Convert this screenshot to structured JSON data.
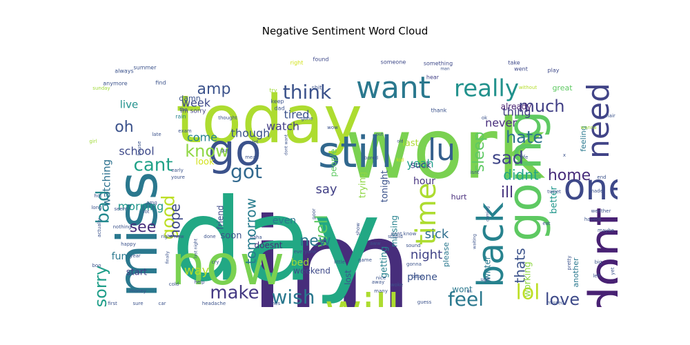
{
  "chart_data": {
    "type": "wordcloud",
    "title": "Negative Sentiment Word Cloud",
    "colormap": "viridis",
    "background": "#ffffff",
    "words": [
      {
        "text": "im",
        "weight": 1.0,
        "color": "#472d7b"
      },
      {
        "text": "work",
        "weight": 0.98,
        "color": "#7ad151"
      },
      {
        "text": "day",
        "weight": 0.97,
        "color": "#22a884"
      },
      {
        "text": "today",
        "weight": 0.85,
        "color": "#addc30"
      },
      {
        "text": "miss",
        "weight": 0.7,
        "color": "#2a788e"
      },
      {
        "text": "now",
        "weight": 0.68,
        "color": "#7ad151"
      },
      {
        "text": "dont",
        "weight": 0.6,
        "color": "#482173"
      },
      {
        "text": "still",
        "weight": 0.58,
        "color": "#31688e"
      },
      {
        "text": "going",
        "weight": 0.57,
        "color": "#5ec962"
      },
      {
        "text": "go",
        "weight": 0.55,
        "color": "#3b528b"
      },
      {
        "text": "will",
        "weight": 0.55,
        "color": "#addc30"
      },
      {
        "text": "one",
        "weight": 0.48,
        "color": "#3e4989"
      },
      {
        "text": "back",
        "weight": 0.46,
        "color": "#26828e"
      },
      {
        "text": "want",
        "weight": 0.42,
        "color": "#2a788e"
      },
      {
        "text": "need",
        "weight": 0.4,
        "color": "#414487"
      },
      {
        "text": "time",
        "weight": 0.4,
        "color": "#addc30"
      },
      {
        "text": "lu",
        "weight": 0.36,
        "color": "#355f8d"
      },
      {
        "text": "really",
        "weight": 0.33,
        "color": "#21918c"
      },
      {
        "text": "feel",
        "weight": 0.32,
        "color": "#2a788e"
      },
      {
        "text": "wish",
        "weight": 0.3,
        "color": "#2a788e"
      },
      {
        "text": "lol",
        "weight": 0.3,
        "color": "#bddf26"
      },
      {
        "text": "think",
        "weight": 0.29,
        "color": "#3b528b"
      },
      {
        "text": "make",
        "weight": 0.28,
        "color": "#443983"
      },
      {
        "text": "got",
        "weight": 0.28,
        "color": "#31688e"
      },
      {
        "text": "sorry",
        "weight": 0.27,
        "color": "#1f9e89"
      },
      {
        "text": "good",
        "weight": 0.27,
        "color": "#bddf26"
      },
      {
        "text": "bad",
        "weight": 0.27,
        "color": "#23898e"
      },
      {
        "text": "cant",
        "weight": 0.26,
        "color": "#1fa187"
      },
      {
        "text": "much",
        "weight": 0.26,
        "color": "#424086"
      },
      {
        "text": "sad",
        "weight": 0.26,
        "color": "#404688"
      },
      {
        "text": "love",
        "weight": 0.25,
        "color": "#3e4a89"
      },
      {
        "text": "well",
        "weight": 0.25,
        "color": "#5ec962"
      },
      {
        "text": "know",
        "weight": 0.24,
        "color": "#8fd744"
      },
      {
        "text": "hate",
        "weight": 0.24,
        "color": "#2c718e"
      },
      {
        "text": "home",
        "weight": 0.24,
        "color": "#472c7a"
      },
      {
        "text": "tomorrow",
        "weight": 0.24,
        "color": "#287c8e"
      },
      {
        "text": "amp",
        "weight": 0.22,
        "color": "#3b528b"
      },
      {
        "text": "new",
        "weight": 0.22,
        "color": "#2a788e"
      },
      {
        "text": "sleep",
        "weight": 0.22,
        "color": "#5ec962"
      },
      {
        "text": "didnt",
        "weight": 0.22,
        "color": "#20a486"
      },
      {
        "text": "ill",
        "weight": 0.22,
        "color": "#46327e"
      },
      {
        "text": "see",
        "weight": 0.22,
        "color": "#472d7b"
      },
      {
        "text": "hope",
        "weight": 0.21,
        "color": "#3e4989"
      },
      {
        "text": "oh",
        "weight": 0.2,
        "color": "#3b528b"
      },
      {
        "text": "thats",
        "weight": 0.2,
        "color": "#3b528b"
      },
      {
        "text": "sick",
        "weight": 0.19,
        "color": "#2e6e8e"
      },
      {
        "text": "night",
        "weight": 0.19,
        "color": "#414487"
      },
      {
        "text": "say",
        "weight": 0.18,
        "color": "#424086"
      },
      {
        "text": "morning",
        "weight": 0.18,
        "color": "#1f968b"
      },
      {
        "text": "way",
        "weight": 0.18,
        "color": "#b5de2b"
      },
      {
        "text": "tired",
        "weight": 0.18,
        "color": "#3b528b"
      },
      {
        "text": "thing",
        "weight": 0.17,
        "color": "#433e85"
      },
      {
        "text": "though",
        "weight": 0.17,
        "color": "#3b528b"
      },
      {
        "text": "watching",
        "weight": 0.16,
        "color": "#2c718e"
      },
      {
        "text": "school",
        "weight": 0.16,
        "color": "#3e4989"
      },
      {
        "text": "come",
        "weight": 0.15,
        "color": "#26828e"
      },
      {
        "text": "watch",
        "weight": 0.15,
        "color": "#433e85"
      },
      {
        "text": "yeah",
        "weight": 0.15,
        "color": "#1f9e89"
      },
      {
        "text": "never",
        "weight": 0.15,
        "color": "#472d7b"
      },
      {
        "text": "week",
        "weight": 0.15,
        "color": "#3e4989"
      },
      {
        "text": "live",
        "weight": 0.14,
        "color": "#21918c"
      },
      {
        "text": "hour",
        "weight": 0.14,
        "color": "#46327e"
      },
      {
        "text": "even",
        "weight": 0.14,
        "color": "#2a788e"
      },
      {
        "text": "fun",
        "weight": 0.14,
        "color": "#2a788e"
      },
      {
        "text": "last",
        "weight": 0.14,
        "color": "#addc30"
      },
      {
        "text": "better",
        "weight": 0.14,
        "color": "#1f968b"
      },
      {
        "text": "bed",
        "weight": 0.14,
        "color": "#a0da39"
      },
      {
        "text": "phone",
        "weight": 0.14,
        "color": "#3b528b"
      },
      {
        "text": "look",
        "weight": 0.13,
        "color": "#d2e21b"
      },
      {
        "text": "trying",
        "weight": 0.13,
        "color": "#8fd744"
      },
      {
        "text": "getting",
        "weight": 0.13,
        "color": "#26828e"
      },
      {
        "text": "soon",
        "weight": 0.13,
        "color": "#3b528b"
      },
      {
        "text": "working",
        "weight": 0.13,
        "color": "#8fd744"
      },
      {
        "text": "tonight",
        "weight": 0.13,
        "color": "#3b528b"
      },
      {
        "text": "suck",
        "weight": 0.13,
        "color": "#424086"
      },
      {
        "text": "start",
        "weight": 0.13,
        "color": "#424086"
      },
      {
        "text": "people",
        "weight": 0.12,
        "color": "#5ec962"
      },
      {
        "text": "friend",
        "weight": 0.12,
        "color": "#3e4989"
      },
      {
        "text": "weekend",
        "weight": 0.12,
        "color": "#3e4989"
      },
      {
        "text": "lost",
        "weight": 0.12,
        "color": "#3b528b"
      },
      {
        "text": "missing",
        "weight": 0.12,
        "color": "#26828e"
      },
      {
        "text": "twitter",
        "weight": 0.12,
        "color": "#2a788e"
      },
      {
        "text": "wont",
        "weight": 0.12,
        "color": "#2a788e"
      },
      {
        "text": "doesnt",
        "weight": 0.12,
        "color": "#472d7b"
      },
      {
        "text": "already",
        "weight": 0.12,
        "color": "#481f70"
      },
      {
        "text": "great",
        "weight": 0.11,
        "color": "#5ec962"
      },
      {
        "text": "hurt",
        "weight": 0.11,
        "color": "#472d7b"
      },
      {
        "text": "feeling",
        "weight": 0.11,
        "color": "#2a788e"
      },
      {
        "text": "please",
        "weight": 0.1,
        "color": "#2a788e"
      },
      {
        "text": "damn",
        "weight": 0.1,
        "color": "#3b528b"
      },
      {
        "text": "another",
        "weight": 0.1,
        "color": "#2a788e"
      },
      {
        "text": "im sorry",
        "weight": 0.08,
        "color": "#424086"
      },
      {
        "text": "always",
        "weight": 0.08,
        "color": "#3b528b"
      },
      {
        "text": "anymore",
        "weight": 0.08,
        "color": "#3b528b"
      },
      {
        "text": "summer",
        "weight": 0.08,
        "color": "#3b528b"
      },
      {
        "text": "sunday",
        "weight": 0.07,
        "color": "#a0da39"
      },
      {
        "text": "right",
        "weight": 0.08,
        "color": "#d2e21b"
      },
      {
        "text": "found",
        "weight": 0.08,
        "color": "#3e4989"
      },
      {
        "text": "someone",
        "weight": 0.08,
        "color": "#3e4989"
      },
      {
        "text": "something",
        "weight": 0.08,
        "color": "#3e4989"
      },
      {
        "text": "take",
        "weight": 0.08,
        "color": "#3e4989"
      },
      {
        "text": "went",
        "weight": 0.08,
        "color": "#3e4989"
      },
      {
        "text": "play",
        "weight": 0.08,
        "color": "#3e4989"
      },
      {
        "text": "hear",
        "weight": 0.08,
        "color": "#424086"
      },
      {
        "text": "without",
        "weight": 0.07,
        "color": "#b5de2b"
      },
      {
        "text": "find",
        "weight": 0.08,
        "color": "#3b528b"
      },
      {
        "text": "rain",
        "weight": 0.08,
        "color": "#26828e"
      },
      {
        "text": "tho",
        "weight": 0.07,
        "color": "#3b528b"
      },
      {
        "text": "try",
        "weight": 0.08,
        "color": "#a0da39"
      },
      {
        "text": "shit",
        "weight": 0.08,
        "color": "#3b528b"
      },
      {
        "text": "keep",
        "weight": 0.08,
        "color": "#3b528b"
      },
      {
        "text": "dad",
        "weight": 0.08,
        "color": "#3b528b"
      },
      {
        "text": "thank",
        "weight": 0.08,
        "color": "#3b528b"
      },
      {
        "text": "thought",
        "weight": 0.07,
        "color": "#3b528b"
      },
      {
        "text": "gone",
        "weight": 0.07,
        "color": "#3b528b"
      },
      {
        "text": "wow",
        "weight": 0.07,
        "color": "#3b528b"
      },
      {
        "text": "ok",
        "weight": 0.07,
        "color": "#3b528b"
      },
      {
        "text": "hair",
        "weight": 0.07,
        "color": "#3b528b"
      },
      {
        "text": "wanna",
        "weight": 0.07,
        "color": "#a0da39"
      },
      {
        "text": "exam",
        "weight": 0.07,
        "color": "#3b528b"
      },
      {
        "text": "girl",
        "weight": 0.07,
        "color": "#a0da39"
      },
      {
        "text": "house",
        "weight": 0.07,
        "color": "#3b528b"
      },
      {
        "text": "late",
        "weight": 0.07,
        "color": "#3b528b"
      },
      {
        "text": "guy",
        "weight": 0.07,
        "color": "#3b528b"
      },
      {
        "text": "let",
        "weight": 0.07,
        "color": "#3b528b"
      },
      {
        "text": "mean",
        "weight": 0.07,
        "color": "#3b528b"
      },
      {
        "text": "dont want",
        "weight": 0.06,
        "color": "#3b528b"
      },
      {
        "text": "bored",
        "weight": 0.07,
        "color": "#3b528b"
      },
      {
        "text": "kid",
        "weight": 0.07,
        "color": "#d2e21b"
      },
      {
        "text": "isnt",
        "weight": 0.07,
        "color": "#3b528b"
      },
      {
        "text": "life",
        "weight": 0.07,
        "color": "#3b528b"
      },
      {
        "text": "end",
        "weight": 0.07,
        "color": "#3b528b"
      },
      {
        "text": "made",
        "weight": 0.07,
        "color": "#3b528b"
      },
      {
        "text": "tweet",
        "weight": 0.07,
        "color": "#3b528b"
      },
      {
        "text": "early",
        "weight": 0.07,
        "color": "#3b528b"
      },
      {
        "text": "youre",
        "weight": 0.07,
        "color": "#3b528b"
      },
      {
        "text": "hot",
        "weight": 0.07,
        "color": "#3b528b"
      },
      {
        "text": "omg",
        "weight": 0.07,
        "color": "#3b528b"
      },
      {
        "text": "long",
        "weight": 0.07,
        "color": "#3b528b"
      },
      {
        "text": "seem",
        "weight": 0.07,
        "color": "#3b528b"
      },
      {
        "text": "lot",
        "weight": 0.07,
        "color": "#3b528b"
      },
      {
        "text": "weather",
        "weight": 0.07,
        "color": "#3b528b"
      },
      {
        "text": "havent",
        "weight": 0.07,
        "color": "#3b528b"
      },
      {
        "text": "eat",
        "weight": 0.07,
        "color": "#3b528b"
      },
      {
        "text": "maybe",
        "weight": 0.07,
        "color": "#3b528b"
      },
      {
        "text": "nothing",
        "weight": 0.07,
        "color": "#3b528b"
      },
      {
        "text": "actually",
        "weight": 0.07,
        "color": "#3b528b"
      },
      {
        "text": "haha",
        "weight": 0.07,
        "color": "#3b528b"
      },
      {
        "text": "stupid",
        "weight": 0.07,
        "color": "#3b528b"
      },
      {
        "text": "dont know",
        "weight": 0.07,
        "color": "#3b528b"
      },
      {
        "text": "waiting",
        "weight": 0.07,
        "color": "#3b528b"
      },
      {
        "text": "coming",
        "weight": 0.07,
        "color": "#3b528b"
      },
      {
        "text": "happy",
        "weight": 0.07,
        "color": "#3b528b"
      },
      {
        "text": "right now",
        "weight": 0.07,
        "color": "#3b528b"
      },
      {
        "text": "done",
        "weight": 0.07,
        "color": "#3b528b"
      },
      {
        "text": "poor",
        "weight": 0.07,
        "color": "#3b528b"
      },
      {
        "text": "aww",
        "weight": 0.07,
        "color": "#3b528b"
      },
      {
        "text": "sound",
        "weight": 0.07,
        "color": "#3b528b"
      },
      {
        "text": "pretty",
        "weight": 0.07,
        "color": "#3b528b"
      },
      {
        "text": "big",
        "weight": 0.07,
        "color": "#3b528b"
      },
      {
        "text": "boo",
        "weight": 0.07,
        "color": "#3b528b"
      },
      {
        "text": "year",
        "weight": 0.07,
        "color": "#3b528b"
      },
      {
        "text": "last night",
        "weight": 0.07,
        "color": "#3b528b"
      },
      {
        "text": "cry",
        "weight": 0.07,
        "color": "#3b528b"
      },
      {
        "text": "everyone",
        "weight": 0.07,
        "color": "#3b528b"
      },
      {
        "text": "little",
        "weight": 0.07,
        "color": "#3b528b"
      },
      {
        "text": "game",
        "weight": 0.07,
        "color": "#3b528b"
      },
      {
        "text": "finally",
        "weight": 0.07,
        "color": "#3b528b"
      },
      {
        "text": "gonna",
        "weight": 0.07,
        "color": "#3b528b"
      },
      {
        "text": "baby",
        "weight": 0.07,
        "color": "#3b528b"
      },
      {
        "text": "ugh",
        "weight": 0.07,
        "color": "#3b528b"
      },
      {
        "text": "left",
        "weight": 0.07,
        "color": "#3b528b"
      },
      {
        "text": "yet",
        "weight": 0.07,
        "color": "#3b528b"
      },
      {
        "text": "money",
        "weight": 0.07,
        "color": "#3b528b"
      },
      {
        "text": "cold",
        "weight": 0.07,
        "color": "#3b528b"
      },
      {
        "text": "help",
        "weight": 0.07,
        "color": "#3b528b"
      },
      {
        "text": "nice",
        "weight": 0.07,
        "color": "#3b528b"
      },
      {
        "text": "woke",
        "weight": 0.07,
        "color": "#3b528b"
      },
      {
        "text": "away",
        "weight": 0.07,
        "color": "#3b528b"
      },
      {
        "text": "many",
        "weight": 0.07,
        "color": "#3b528b"
      },
      {
        "text": "guess",
        "weight": 0.07,
        "color": "#3b528b"
      },
      {
        "text": "first",
        "weight": 0.07,
        "color": "#3b528b"
      },
      {
        "text": "sure",
        "weight": 0.07,
        "color": "#3b528b"
      },
      {
        "text": "car",
        "weight": 0.07,
        "color": "#3b528b"
      },
      {
        "text": "headache",
        "weight": 0.07,
        "color": "#3b528b"
      },
      {
        "text": "hes",
        "weight": 0.07,
        "color": "#3b528b"
      },
      {
        "text": "missed",
        "weight": 0.07,
        "color": "#3b528b"
      },
      {
        "text": "show",
        "weight": 0.07,
        "color": "#3b528b"
      },
      {
        "text": "ur",
        "weight": 0.07,
        "color": "#3b528b"
      },
      {
        "text": "x",
        "weight": 0.06,
        "color": "#3b528b"
      },
      {
        "text": "put",
        "weight": 0.06,
        "color": "#3b528b"
      },
      {
        "text": "old",
        "weight": 0.06,
        "color": "#3b528b"
      },
      {
        "text": "man",
        "weight": 0.06,
        "color": "#3b528b"
      }
    ]
  }
}
